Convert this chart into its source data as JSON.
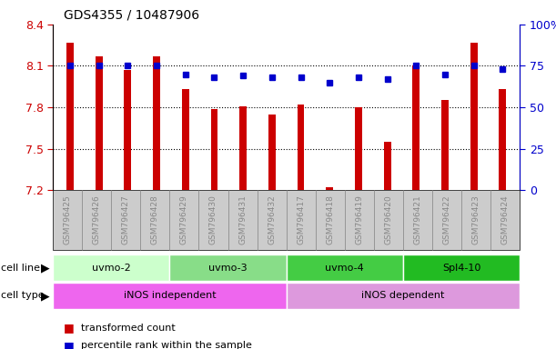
{
  "title": "GDS4355 / 10487906",
  "samples": [
    "GSM796425",
    "GSM796426",
    "GSM796427",
    "GSM796428",
    "GSM796429",
    "GSM796430",
    "GSM796431",
    "GSM796432",
    "GSM796417",
    "GSM796418",
    "GSM796419",
    "GSM796420",
    "GSM796421",
    "GSM796422",
    "GSM796423",
    "GSM796424"
  ],
  "transformed_count": [
    8.27,
    8.17,
    8.07,
    8.17,
    7.93,
    7.79,
    7.81,
    7.75,
    7.82,
    7.22,
    7.8,
    7.55,
    8.1,
    7.85,
    8.27,
    7.93
  ],
  "percentile_rank": [
    75,
    75,
    75,
    75,
    70,
    68,
    69,
    68,
    68,
    65,
    68,
    67,
    75,
    70,
    75,
    73
  ],
  "ylim_left": [
    7.2,
    8.4
  ],
  "ylim_right": [
    0,
    100
  ],
  "yticks_left": [
    7.2,
    7.5,
    7.8,
    8.1,
    8.4
  ],
  "yticks_right": [
    0,
    25,
    50,
    75,
    100
  ],
  "bar_color": "#cc0000",
  "dot_color": "#0000cc",
  "cell_lines": [
    {
      "label": "uvmo-2",
      "start": 0,
      "end": 3,
      "color": "#ccffcc"
    },
    {
      "label": "uvmo-3",
      "start": 4,
      "end": 7,
      "color": "#88dd88"
    },
    {
      "label": "uvmo-4",
      "start": 8,
      "end": 11,
      "color": "#44cc44"
    },
    {
      "label": "Spl4-10",
      "start": 12,
      "end": 15,
      "color": "#22bb22"
    }
  ],
  "cell_types": [
    {
      "label": "iNOS independent",
      "start": 0,
      "end": 7,
      "color": "#ee66ee"
    },
    {
      "label": "iNOS dependent",
      "start": 8,
      "end": 15,
      "color": "#dd99dd"
    }
  ],
  "left_axis_color": "#cc0000",
  "right_axis_color": "#0000cc",
  "tick_label_color": "#888888",
  "xlabel_box_color": "#cccccc"
}
